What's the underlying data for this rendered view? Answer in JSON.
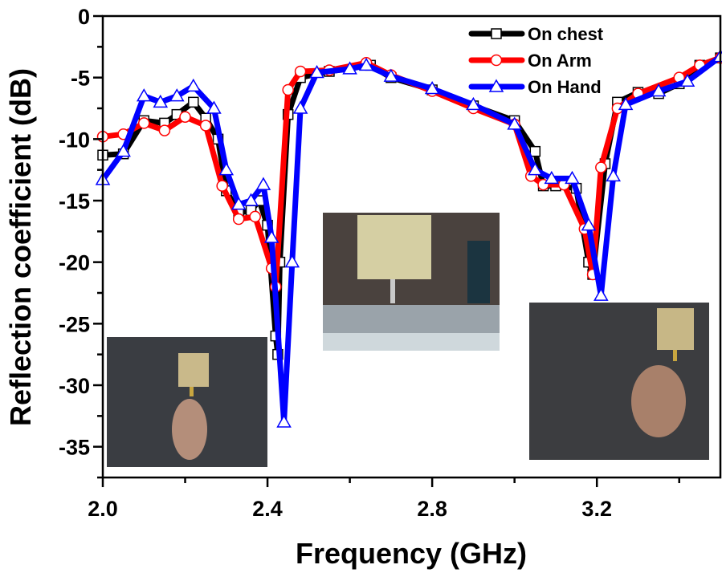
{
  "chart_data": {
    "type": "line",
    "xlabel": "Frequency (GHz)",
    "ylabel": "Reflection coefficient (dB)",
    "xlim": [
      2.0,
      3.5
    ],
    "ylim": [
      -37.5,
      0
    ],
    "xticks": [
      "2.0",
      "2.4",
      "2.8",
      "3.2"
    ],
    "xtick_values": [
      2.0,
      2.4,
      2.8,
      3.2
    ],
    "yticks": [
      "0",
      "-5",
      "-10",
      "-15",
      "-20",
      "-25",
      "-30",
      "-35"
    ],
    "ytick_values": [
      0,
      -5,
      -10,
      -15,
      -20,
      -25,
      -30,
      -35
    ],
    "grid": false,
    "legend_placement": "top-right",
    "series": [
      {
        "name": "On chest",
        "color": "#000000",
        "marker": "square",
        "x": [
          2.0,
          2.05,
          2.1,
          2.15,
          2.18,
          2.22,
          2.25,
          2.28,
          2.3,
          2.33,
          2.36,
          2.38,
          2.4,
          2.42,
          2.425,
          2.43,
          2.45,
          2.48,
          2.55,
          2.65,
          2.7,
          2.8,
          2.9,
          3.0,
          3.05,
          3.07,
          3.1,
          3.15,
          3.18,
          3.19,
          3.22,
          3.25,
          3.3,
          3.35,
          3.4,
          3.45,
          3.5
        ],
        "y": [
          -11.3,
          -11.2,
          -8.5,
          -8.7,
          -8.0,
          -7.0,
          -8.3,
          -10,
          -14.2,
          -16.0,
          -15.8,
          -15,
          -17,
          -26,
          -27.5,
          -20,
          -8,
          -5,
          -4.5,
          -4.0,
          -5,
          -6,
          -7.3,
          -8.5,
          -11,
          -13.8,
          -13.8,
          -14,
          -20,
          -21,
          -12,
          -7,
          -6.2,
          -6.3,
          -5.5,
          -4.0,
          -3.4
        ]
      },
      {
        "name": "On Arm",
        "color": "#ff0000",
        "marker": "circle",
        "x": [
          2.0,
          2.05,
          2.1,
          2.15,
          2.2,
          2.25,
          2.29,
          2.33,
          2.37,
          2.41,
          2.42,
          2.45,
          2.48,
          2.55,
          2.64,
          2.7,
          2.8,
          2.9,
          3.0,
          3.04,
          3.07,
          3.12,
          3.17,
          3.19,
          3.21,
          3.25,
          3.3,
          3.4,
          3.45,
          3.5
        ],
        "y": [
          -9.8,
          -9.6,
          -8.7,
          -9.3,
          -8.2,
          -8.9,
          -13.8,
          -16.5,
          -16.3,
          -20.5,
          -22,
          -6,
          -4.5,
          -4.4,
          -3.8,
          -4.8,
          -6.1,
          -7.5,
          -8.8,
          -13,
          -13.7,
          -13.7,
          -17.3,
          -21,
          -12.3,
          -7.5,
          -6.3,
          -5,
          -4.0,
          -3.4
        ]
      },
      {
        "name": "On Hand",
        "color": "#0000ff",
        "marker": "triangle",
        "x": [
          2.0,
          2.05,
          2.1,
          2.14,
          2.18,
          2.22,
          2.27,
          2.3,
          2.33,
          2.36,
          2.39,
          2.41,
          2.44,
          2.46,
          2.48,
          2.52,
          2.6,
          2.64,
          2.7,
          2.8,
          2.9,
          3.0,
          3.05,
          3.09,
          3.14,
          3.18,
          3.21,
          3.24,
          3.27,
          3.35,
          3.42,
          3.5
        ],
        "y": [
          -13.3,
          -11,
          -6.5,
          -7,
          -6.5,
          -5.7,
          -7.5,
          -12.5,
          -15.3,
          -15,
          -13.7,
          -18,
          -33,
          -20,
          -7.5,
          -4.6,
          -4.3,
          -4.0,
          -4.9,
          -5.9,
          -7.2,
          -8.8,
          -12.5,
          -13.2,
          -13.2,
          -17,
          -22.7,
          -13,
          -7.2,
          -6.1,
          -5.3,
          -3.3
        ]
      }
    ]
  }
}
